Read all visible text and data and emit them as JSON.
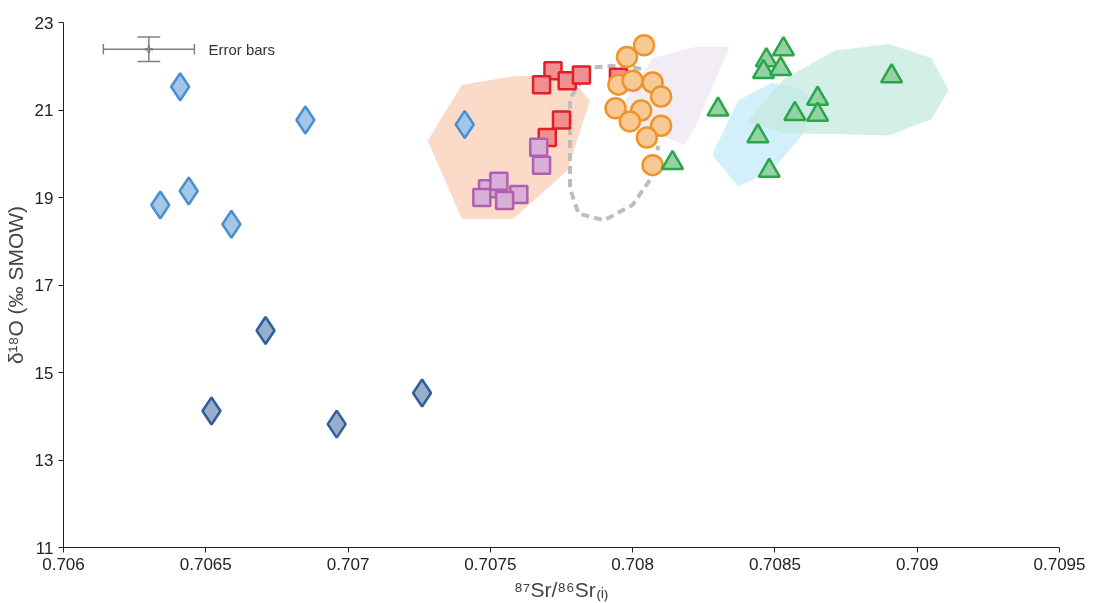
{
  "chart_data": {
    "type": "scatter",
    "xlabel": "⁸⁷Sr/⁸⁶Sr₍ᵢ₎",
    "ylabel": "δ¹⁸O (‰ SMOW)",
    "xlim": [
      0.706,
      0.7095
    ],
    "xticks": [
      {
        "value": 0.706,
        "label": "0.706"
      },
      {
        "value": 0.7065,
        "label": "0.7065"
      },
      {
        "value": 0.707,
        "label": "0.707"
      },
      {
        "value": 0.7075,
        "label": "0.7075"
      },
      {
        "value": 0.708,
        "label": "0.708"
      },
      {
        "value": 0.7085,
        "label": "0.7085"
      },
      {
        "value": 0.709,
        "label": "0.709"
      },
      {
        "value": 0.7095,
        "label": "0.7095"
      }
    ],
    "ylim": [
      11,
      23
    ],
    "yticks": [
      11,
      13,
      15,
      17,
      19,
      21,
      23
    ],
    "grid": false,
    "series": [
      {
        "type": "area",
        "color": "#f9cfb5",
        "x": [
          0.70728,
          0.7074,
          0.70758,
          0.70777,
          0.70785,
          0.70777,
          0.70758,
          0.7074
        ],
        "values": [
          20.3,
          21.58,
          21.77,
          21.82,
          21.21,
          19.61,
          18.51,
          18.51
        ]
      },
      {
        "type": "area",
        "color": "#ede7f2",
        "x": [
          0.70794,
          0.70807,
          0.70822,
          0.70834,
          0.70822,
          0.70818
        ],
        "values": [
          20.85,
          22.19,
          22.44,
          22.44,
          20.6,
          20.2
        ]
      },
      {
        "type": "area",
        "color": "#c4ebf8",
        "x": [
          0.70828,
          0.70837,
          0.70849,
          0.7086,
          0.70864,
          0.7086,
          0.70849,
          0.70837
        ],
        "values": [
          19.98,
          21.21,
          21.63,
          21.45,
          21.15,
          20.47,
          19.61,
          19.25
        ]
      },
      {
        "type": "area",
        "color": "#c6eadf",
        "x": [
          0.7084,
          0.70853,
          0.70871,
          0.7089,
          0.70905,
          0.70911,
          0.70905,
          0.7089,
          0.70871,
          0.70853
        ],
        "values": [
          20.72,
          21.7,
          22.36,
          22.51,
          22.19,
          21.45,
          20.79,
          20.42,
          20.45,
          20.47
        ]
      },
      {
        "type": "line",
        "color": "#bdbdbd",
        "line_style": "dashed",
        "marker": "none",
        "x": [
          0.70803,
          0.70796,
          0.70785,
          0.70778,
          0.70778,
          0.70781,
          0.7079,
          0.708,
          0.70807,
          0.70809
        ],
        "values": [
          21.94,
          22.02,
          21.97,
          21.26,
          19.2,
          18.63,
          18.48,
          18.83,
          19.49,
          20.18
        ]
      },
      {
        "type": "scatter",
        "color": "#808080",
        "marker": "cross",
        "x": [
          0.7063
        ],
        "values": [
          22.39
        ],
        "errors": [
          0.28
        ],
        "xerrors": [
          0.00016
        ]
      },
      {
        "type": "scatter",
        "color": "#4a8fd0",
        "marker": "diamond",
        "x": [
          0.70641,
          0.70685,
          0.70741,
          0.70634,
          0.70644,
          0.70659
        ],
        "values": [
          21.53,
          20.77,
          20.67,
          18.83,
          19.15,
          18.39
        ]
      },
      {
        "type": "scatter",
        "color": "#2f5f9a",
        "marker": "diamond",
        "x": [
          0.70671,
          0.70652,
          0.70696,
          0.70726
        ],
        "values": [
          15.96,
          14.12,
          13.82,
          14.53
        ]
      },
      {
        "type": "scatter",
        "color": "#e41e26",
        "marker": "square",
        "x": [
          0.70795,
          0.70772,
          0.70768,
          0.70777,
          0.70782,
          0.70775,
          0.7077
        ],
        "values": [
          21.75,
          21.9,
          21.58,
          21.67,
          21.8,
          20.77,
          20.37
        ]
      },
      {
        "type": "scatter",
        "color": "#b05fb0",
        "marker": "square",
        "x": [
          0.70767,
          0.70768,
          0.70749,
          0.70747,
          0.70753,
          0.7076,
          0.70755
        ],
        "values": [
          20.15,
          19.74,
          19.2,
          19.0,
          19.37,
          19.07,
          18.93
        ]
      },
      {
        "type": "scatter",
        "color": "#f0932a",
        "marker": "circle",
        "x": [
          0.70804,
          0.70798,
          0.70795,
          0.708,
          0.70807,
          0.7081,
          0.70794,
          0.70803,
          0.70799,
          0.7081,
          0.70805,
          0.70807
        ],
        "values": [
          22.48,
          22.21,
          21.58,
          21.67,
          21.63,
          21.31,
          21.04,
          20.99,
          20.74,
          20.64,
          20.37,
          19.74
        ]
      },
      {
        "type": "scatter",
        "color": "#2aa64a",
        "marker": "triangle",
        "x": [
          0.7083,
          0.70814,
          0.70853,
          0.70847,
          0.70846,
          0.70852,
          0.70865,
          0.70857,
          0.70865,
          0.70891,
          0.70844,
          0.70848
        ],
        "values": [
          21.01,
          19.79,
          22.39,
          22.14,
          21.87,
          21.94,
          21.26,
          20.91,
          20.89,
          21.77,
          20.4,
          19.61
        ]
      }
    ],
    "annotations": [
      "Error bars"
    ]
  }
}
